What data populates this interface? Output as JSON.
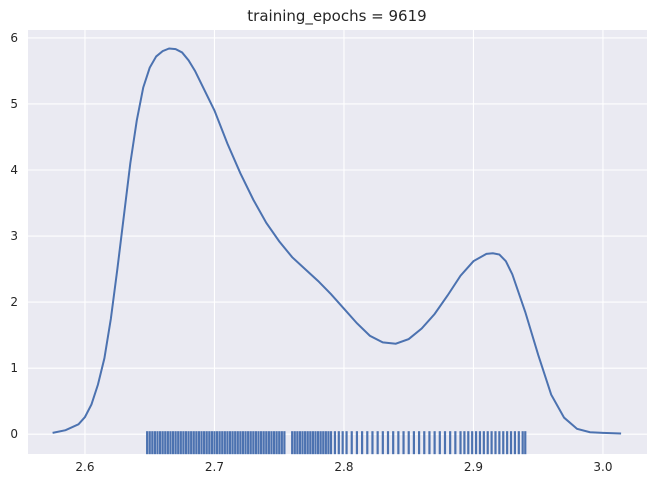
{
  "chart_data": {
    "type": "line",
    "title": "training_epochs = 9619",
    "xlabel": "",
    "ylabel": "",
    "xlim": [
      2.556,
      3.034
    ],
    "ylim": [
      -0.3,
      6.12
    ],
    "xticks": [
      2.6,
      2.7,
      2.8,
      2.9,
      3.0
    ],
    "xtick_labels": [
      "2.6",
      "2.7",
      "2.8",
      "2.9",
      "3.0"
    ],
    "yticks": [
      0,
      1,
      2,
      3,
      4,
      5,
      6
    ],
    "ytick_labels": [
      "0",
      "1",
      "2",
      "3",
      "4",
      "5",
      "6"
    ],
    "grid": true,
    "background": "#eaeaf2",
    "line_color": "#4c72b0",
    "rug_color": "#4c72b0",
    "series": [
      {
        "kind": "kde",
        "x": [
          2.575,
          2.585,
          2.595,
          2.6,
          2.605,
          2.61,
          2.615,
          2.62,
          2.625,
          2.63,
          2.635,
          2.64,
          2.645,
          2.65,
          2.655,
          2.66,
          2.665,
          2.67,
          2.675,
          2.68,
          2.685,
          2.69,
          2.7,
          2.71,
          2.72,
          2.73,
          2.74,
          2.75,
          2.76,
          2.77,
          2.78,
          2.79,
          2.8,
          2.81,
          2.82,
          2.83,
          2.84,
          2.85,
          2.86,
          2.87,
          2.88,
          2.89,
          2.9,
          2.91,
          2.915,
          2.92,
          2.925,
          2.93,
          2.94,
          2.95,
          2.96,
          2.97,
          2.98,
          2.99,
          3.0,
          3.014
        ],
        "y": [
          0.02,
          0.06,
          0.15,
          0.26,
          0.45,
          0.75,
          1.15,
          1.75,
          2.5,
          3.3,
          4.1,
          4.75,
          5.25,
          5.55,
          5.72,
          5.8,
          5.84,
          5.83,
          5.78,
          5.66,
          5.5,
          5.3,
          4.9,
          4.4,
          3.95,
          3.55,
          3.2,
          2.92,
          2.68,
          2.5,
          2.32,
          2.12,
          1.9,
          1.68,
          1.49,
          1.39,
          1.37,
          1.44,
          1.6,
          1.82,
          2.1,
          2.4,
          2.62,
          2.73,
          2.74,
          2.72,
          2.62,
          2.42,
          1.85,
          1.2,
          0.6,
          0.25,
          0.08,
          0.03,
          0.02,
          0.01
        ]
      },
      {
        "kind": "rug",
        "x": [
          2.648,
          2.65,
          2.652,
          2.654,
          2.656,
          2.658,
          2.66,
          2.662,
          2.664,
          2.666,
          2.668,
          2.67,
          2.672,
          2.674,
          2.676,
          2.678,
          2.68,
          2.682,
          2.684,
          2.686,
          2.688,
          2.69,
          2.692,
          2.694,
          2.696,
          2.698,
          2.7,
          2.702,
          2.704,
          2.706,
          2.708,
          2.71,
          2.712,
          2.714,
          2.716,
          2.718,
          2.72,
          2.722,
          2.724,
          2.726,
          2.728,
          2.73,
          2.732,
          2.734,
          2.736,
          2.738,
          2.74,
          2.742,
          2.744,
          2.746,
          2.748,
          2.75,
          2.752,
          2.754,
          2.76,
          2.762,
          2.764,
          2.766,
          2.768,
          2.77,
          2.772,
          2.774,
          2.776,
          2.778,
          2.78,
          2.782,
          2.784,
          2.786,
          2.788,
          2.79,
          2.793,
          2.796,
          2.799,
          2.802,
          2.806,
          2.81,
          2.814,
          2.818,
          2.822,
          2.826,
          2.83,
          2.834,
          2.838,
          2.842,
          2.846,
          2.85,
          2.854,
          2.858,
          2.862,
          2.866,
          2.87,
          2.874,
          2.878,
          2.882,
          2.886,
          2.89,
          2.893,
          2.896,
          2.899,
          2.902,
          2.905,
          2.908,
          2.911,
          2.914,
          2.917,
          2.92,
          2.923,
          2.926,
          2.929,
          2.932,
          2.935,
          2.938,
          2.94
        ]
      }
    ]
  }
}
